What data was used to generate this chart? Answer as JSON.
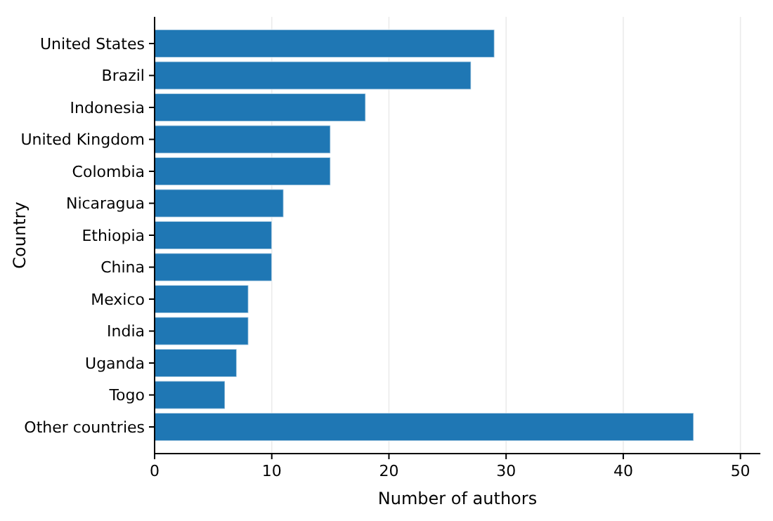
{
  "chart_data": {
    "type": "bar",
    "orientation": "horizontal",
    "xlabel": "Number of authors",
    "ylabel": "Country",
    "categories": [
      "United States",
      "Brazil",
      "Indonesia",
      "United Kingdom",
      "Colombia",
      "Nicaragua",
      "Ethiopia",
      "China",
      "Mexico",
      "India",
      "Uganda",
      "Togo",
      "Other countries"
    ],
    "values": [
      29,
      27,
      18,
      15,
      15,
      11,
      10,
      10,
      8,
      8,
      7,
      6,
      46
    ],
    "color": "#1f77b4",
    "xlim": [
      0,
      51.7
    ],
    "xticks": [
      0,
      10,
      20,
      30,
      40,
      50
    ],
    "grid": "x"
  }
}
